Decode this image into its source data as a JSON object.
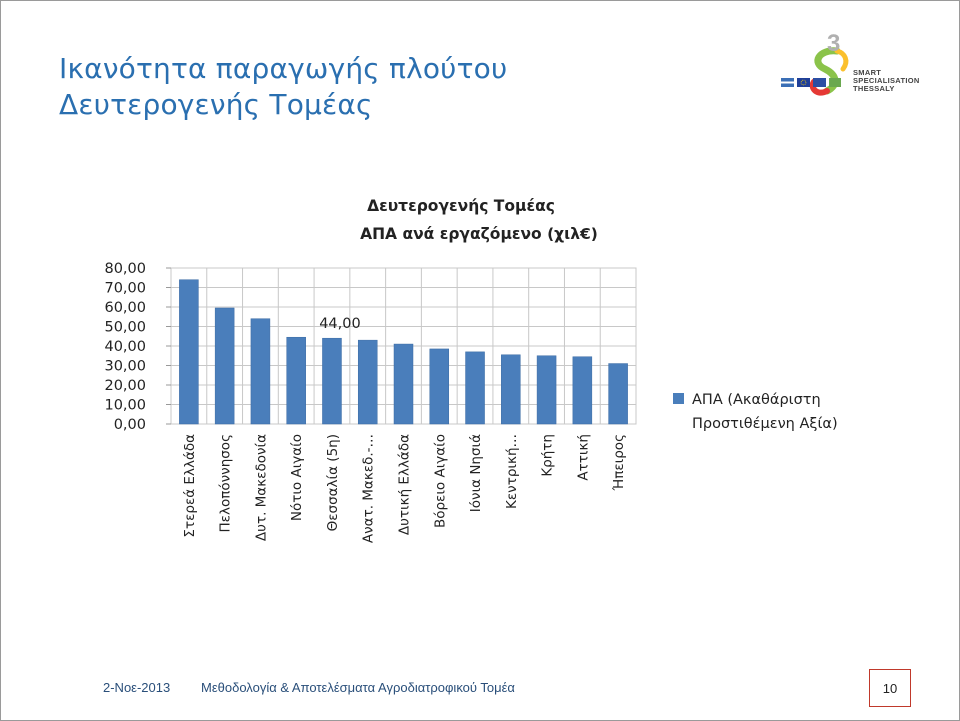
{
  "slide": {
    "title_line1": "Ικανότητα παραγωγής πλούτου",
    "title_line2": "Δευτερογενής Τομέας"
  },
  "logo": {
    "digit": "3",
    "line1": "SMART",
    "line2": "SPECIALISATION",
    "line3": "THESSALY"
  },
  "footer": {
    "date": "2-Νοε-2013",
    "text": "Μεθοδολογία & Αποτελέσματα Αγροδιατροφικού Τομέα",
    "page": "10"
  },
  "chart_data": {
    "type": "bar",
    "title": "Δευτερογενής Τομέας",
    "subtitle": "ΑΠΑ ανά εργαζόμενο (χιλ€)",
    "categories": [
      "Στερεά Ελλάδα",
      "Πελοπόννησος",
      "Δυτ. Μακεδονία",
      "Νότιο Αιγαίο",
      "Θεσσαλία (5η)",
      "Ανατ. Μακεδ.-…",
      "Δυτική Ελλάδα",
      "Βόρειο Αιγαίο",
      "Ιόνια Νησιά",
      "Κεντρική…",
      "Κρήτη",
      "Αττική",
      "Ήπειρος"
    ],
    "series": [
      {
        "name": "ΑΠΑ (Ακαθάριστη Προστιθέμενη Αξία)",
        "legend_lines": [
          "ΑΠΑ (Ακαθάριστη",
          "Προστιθέμενη Αξία)"
        ],
        "values": [
          74.0,
          59.5,
          54.0,
          44.5,
          44.0,
          43.0,
          41.0,
          38.5,
          37.0,
          35.5,
          35.0,
          34.5,
          31.0
        ]
      }
    ],
    "data_labels": [
      {
        "index": 4,
        "text": "44,00"
      }
    ],
    "yticks": [
      "0,00",
      "10,00",
      "20,00",
      "30,00",
      "40,00",
      "50,00",
      "60,00",
      "70,00",
      "80,00"
    ],
    "ylim": [
      0,
      80
    ],
    "grid": true,
    "legend": "right",
    "colors": {
      "bar": "#4a7ebb",
      "grid": "#c8c8c8"
    }
  }
}
